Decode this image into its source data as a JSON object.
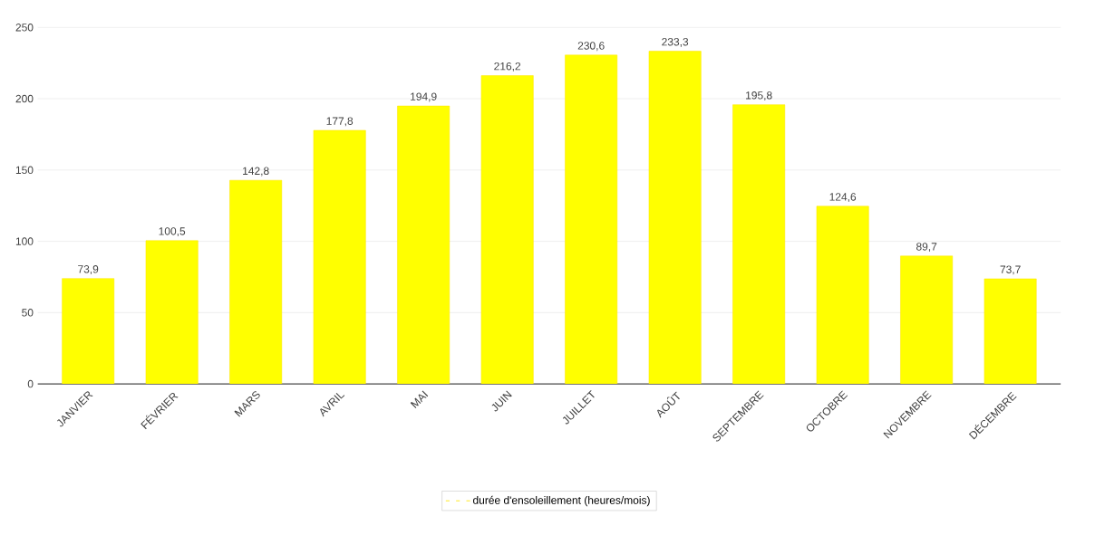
{
  "chart_data": {
    "type": "bar",
    "categories": [
      "JANVIER",
      "FÉVRIER",
      "MARS",
      "AVRIL",
      "MAI",
      "JUIN",
      "JUILLET",
      "AOÛT",
      "SEPTEMBRE",
      "OCTOBRE",
      "NOVEMBRE",
      "DÉCEMBRE"
    ],
    "series": [
      {
        "name": "durée d'ensoleillement (heures/mois)",
        "color": "#ffff00",
        "values": [
          73.9,
          100.5,
          142.8,
          177.8,
          194.9,
          216.2,
          230.6,
          233.3,
          195.8,
          124.6,
          89.7,
          73.7
        ],
        "value_labels": [
          "73,9",
          "100,5",
          "142,8",
          "177,8",
          "194,9",
          "216,2",
          "230,6",
          "233,3",
          "195,8",
          "124,6",
          "89,7",
          "73,7"
        ]
      }
    ],
    "ylim": [
      0,
      250
    ],
    "yticks": [
      0,
      50,
      100,
      150,
      200,
      250
    ],
    "grid": "y",
    "legend": "bottom"
  }
}
